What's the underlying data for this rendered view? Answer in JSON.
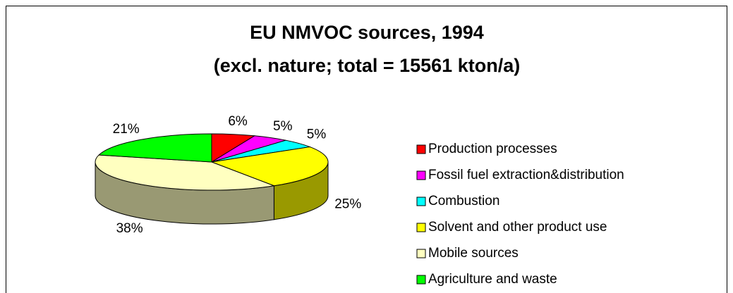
{
  "chart_data": {
    "type": "pie",
    "title": "EU NMVOC sources, 1994",
    "subtitle": "(excl. nature; total = 15561 kton/a)",
    "categories": [
      "Production processes",
      "Fossil fuel extraction&distribution",
      "Combustion",
      "Solvent and other product use",
      "Mobile sources",
      "Agriculture and waste"
    ],
    "values": [
      6,
      5,
      5,
      25,
      38,
      21
    ],
    "value_labels": [
      "6%",
      "5%",
      "5%",
      "25%",
      "38%",
      "21%"
    ],
    "colors": [
      "#ff0000",
      "#ff00ff",
      "#00ffff",
      "#ffff00",
      "#ffffc0",
      "#00ff00"
    ],
    "legend": "right"
  }
}
